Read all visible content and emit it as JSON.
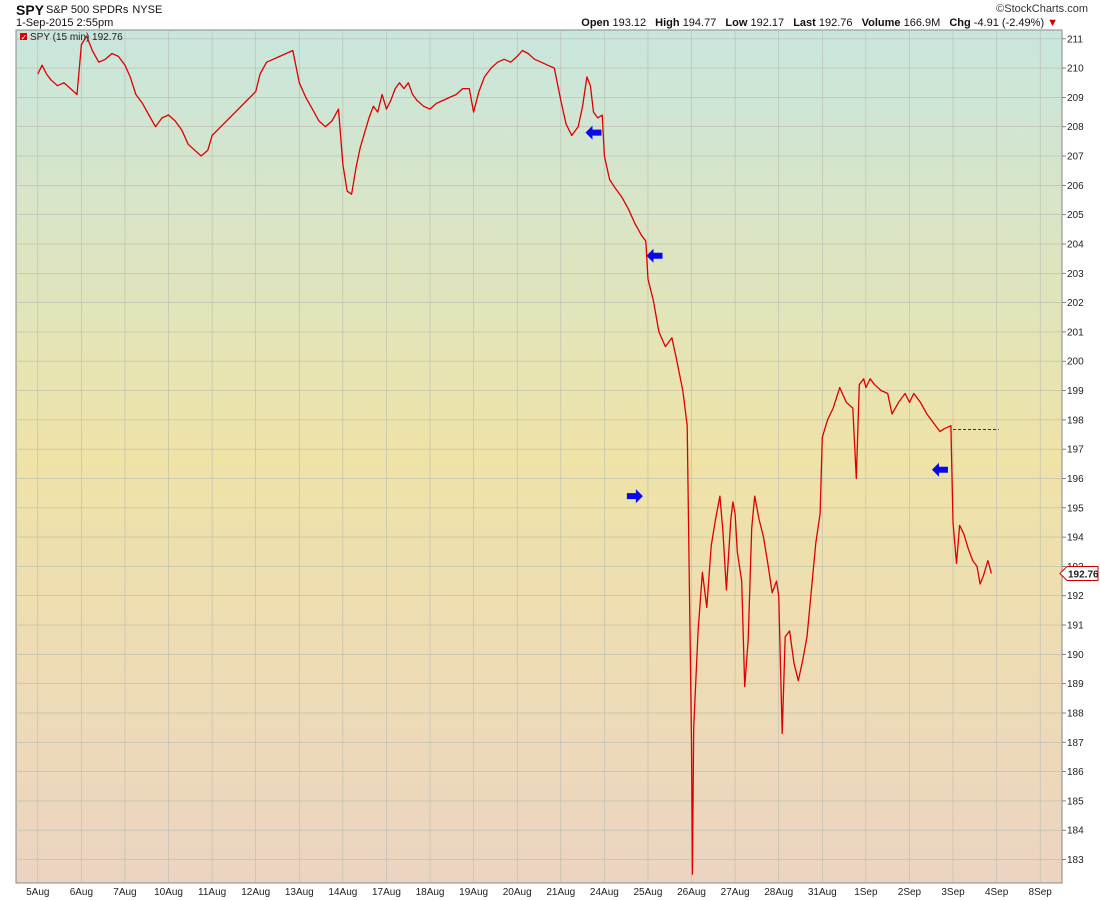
{
  "header": {
    "symbol": "SPY",
    "name": "S&P 500 SPDRs",
    "exchange": "NYSE",
    "datetime": "1-Sep-2015 2:55pm",
    "credit": "©StockCharts.com",
    "stats": {
      "open_label": "Open",
      "open": "193.12",
      "high_label": "High",
      "high": "194.77",
      "low_label": "Low",
      "low": "192.17",
      "last_label": "Last",
      "last": "192.76",
      "volume_label": "Volume",
      "volume": "166.9M",
      "chg_label": "Chg",
      "chg": "-4.91 (-2.49%)"
    }
  },
  "legend": {
    "text": "SPY (15 min) 192.76"
  },
  "price_tag": "192.76",
  "colors": {
    "line": "#dd0000",
    "arrow": "#0a0ae6",
    "grid": "#b9bcb0",
    "bg_top": "#c8e6de",
    "bg_mid": "#efe3a7",
    "bg_bottom": "#ecd4c2"
  },
  "chart_data": {
    "type": "line",
    "series": [
      {
        "name": "SPY (15 min)"
      }
    ],
    "x_ticks": [
      "5Aug",
      "6Aug",
      "7Aug",
      "10Aug",
      "11Aug",
      "12Aug",
      "13Aug",
      "14Aug",
      "17Aug",
      "18Aug",
      "19Aug",
      "20Aug",
      "21Aug",
      "24Aug",
      "25Aug",
      "26Aug",
      "27Aug",
      "28Aug",
      "31Aug",
      "1Sep",
      "2Sep",
      "3Sep",
      "4Sep",
      "8Sep"
    ],
    "y_ticks": [
      183,
      184,
      185,
      186,
      187,
      188,
      189,
      190,
      191,
      192,
      193,
      194,
      195,
      196,
      197,
      198,
      199,
      200,
      201,
      202,
      203,
      204,
      205,
      206,
      207,
      208,
      209,
      210,
      211
    ],
    "ylim": [
      182.2,
      211.3
    ],
    "grid": true,
    "points": [
      [
        4.0,
        209.8
      ],
      [
        4.1,
        210.1
      ],
      [
        4.2,
        209.8
      ],
      [
        4.3,
        209.6
      ],
      [
        4.45,
        209.4
      ],
      [
        4.6,
        209.5
      ],
      [
        4.75,
        209.3
      ],
      [
        4.9,
        209.1
      ],
      [
        5.0,
        210.8
      ],
      [
        5.12,
        211.1
      ],
      [
        5.25,
        210.6
      ],
      [
        5.4,
        210.2
      ],
      [
        5.55,
        210.3
      ],
      [
        5.7,
        210.5
      ],
      [
        5.85,
        210.4
      ],
      [
        6.0,
        210.1
      ],
      [
        6.12,
        209.7
      ],
      [
        6.25,
        209.1
      ],
      [
        6.4,
        208.8
      ],
      [
        6.55,
        208.4
      ],
      [
        6.7,
        208.0
      ],
      [
        6.85,
        208.3
      ],
      [
        7.0,
        208.4
      ],
      [
        7.15,
        208.2
      ],
      [
        7.3,
        207.9
      ],
      [
        7.45,
        207.4
      ],
      [
        7.6,
        207.2
      ],
      [
        7.75,
        207.0
      ],
      [
        7.9,
        207.2
      ],
      [
        8.0,
        207.7
      ],
      [
        9.0,
        209.2
      ],
      [
        9.1,
        209.8
      ],
      [
        9.25,
        210.2
      ],
      [
        9.4,
        210.3
      ],
      [
        9.55,
        210.4
      ],
      [
        9.7,
        210.5
      ],
      [
        9.85,
        210.6
      ],
      [
        10.0,
        209.5
      ],
      [
        10.15,
        209.0
      ],
      [
        10.3,
        208.6
      ],
      [
        10.45,
        208.2
      ],
      [
        10.6,
        208.0
      ],
      [
        10.75,
        208.2
      ],
      [
        10.9,
        208.6
      ],
      [
        11.0,
        206.7
      ],
      [
        11.1,
        205.8
      ],
      [
        11.2,
        205.7
      ],
      [
        11.3,
        206.6
      ],
      [
        11.4,
        207.3
      ],
      [
        11.5,
        207.8
      ],
      [
        11.6,
        208.3
      ],
      [
        11.7,
        208.7
      ],
      [
        11.8,
        208.5
      ],
      [
        11.9,
        209.1
      ],
      [
        12.0,
        208.6
      ],
      [
        12.1,
        208.9
      ],
      [
        12.2,
        209.3
      ],
      [
        12.3,
        209.5
      ],
      [
        12.4,
        209.3
      ],
      [
        12.5,
        209.5
      ],
      [
        12.6,
        209.1
      ],
      [
        12.7,
        208.9
      ],
      [
        12.85,
        208.7
      ],
      [
        13.0,
        208.6
      ],
      [
        13.15,
        208.8
      ],
      [
        13.3,
        208.9
      ],
      [
        13.45,
        209.0
      ],
      [
        13.6,
        209.1
      ],
      [
        13.75,
        209.3
      ],
      [
        13.9,
        209.3
      ],
      [
        14.0,
        208.5
      ],
      [
        14.12,
        209.2
      ],
      [
        14.25,
        209.7
      ],
      [
        14.4,
        210.0
      ],
      [
        14.55,
        210.2
      ],
      [
        14.7,
        210.3
      ],
      [
        14.85,
        210.2
      ],
      [
        15.0,
        210.4
      ],
      [
        15.12,
        210.6
      ],
      [
        15.25,
        210.5
      ],
      [
        15.4,
        210.3
      ],
      [
        15.55,
        210.2
      ],
      [
        15.7,
        210.1
      ],
      [
        15.85,
        210.0
      ],
      [
        16.0,
        208.9
      ],
      [
        16.12,
        208.1
      ],
      [
        16.25,
        207.7
      ],
      [
        16.4,
        208.0
      ],
      [
        16.5,
        208.7
      ],
      [
        16.6,
        209.7
      ],
      [
        16.68,
        209.4
      ],
      [
        16.75,
        208.5
      ],
      [
        16.85,
        208.3
      ],
      [
        16.95,
        208.4
      ],
      [
        17.0,
        207.0
      ],
      [
        17.12,
        206.2
      ],
      [
        17.25,
        205.9
      ],
      [
        17.4,
        205.6
      ],
      [
        17.55,
        205.2
      ],
      [
        17.7,
        204.7
      ],
      [
        17.85,
        204.3
      ],
      [
        17.95,
        204.1
      ],
      [
        18.0,
        202.8
      ],
      [
        18.12,
        202.1
      ],
      [
        18.25,
        201.0
      ],
      [
        18.4,
        200.5
      ],
      [
        18.55,
        200.8
      ],
      [
        18.65,
        200.1
      ],
      [
        18.8,
        199.0
      ],
      [
        18.9,
        197.8
      ],
      [
        19.0,
        187.0
      ],
      [
        19.02,
        182.5
      ],
      [
        19.05,
        187.5
      ],
      [
        19.15,
        190.8
      ],
      [
        19.25,
        192.8
      ],
      [
        19.35,
        191.6
      ],
      [
        19.45,
        193.7
      ],
      [
        19.55,
        194.6
      ],
      [
        19.65,
        195.4
      ],
      [
        19.72,
        194.2
      ],
      [
        19.8,
        192.2
      ],
      [
        19.9,
        194.6
      ],
      [
        19.95,
        195.2
      ],
      [
        20.0,
        194.8
      ],
      [
        20.05,
        193.5
      ],
      [
        20.15,
        192.5
      ],
      [
        20.22,
        188.9
      ],
      [
        20.3,
        190.5
      ],
      [
        20.38,
        194.3
      ],
      [
        20.45,
        195.4
      ],
      [
        20.55,
        194.6
      ],
      [
        20.65,
        194.0
      ],
      [
        20.75,
        193.1
      ],
      [
        20.85,
        192.1
      ],
      [
        20.95,
        192.5
      ],
      [
        21.0,
        192.0
      ],
      [
        21.08,
        187.3
      ],
      [
        21.15,
        190.6
      ],
      [
        21.25,
        190.8
      ],
      [
        21.35,
        189.7
      ],
      [
        21.45,
        189.1
      ],
      [
        21.55,
        189.8
      ],
      [
        21.65,
        190.6
      ],
      [
        21.75,
        192.2
      ],
      [
        21.85,
        193.8
      ],
      [
        21.95,
        194.8
      ],
      [
        22.0,
        197.4
      ],
      [
        22.12,
        198.0
      ],
      [
        22.25,
        198.4
      ],
      [
        22.4,
        199.1
      ],
      [
        22.55,
        198.6
      ],
      [
        22.7,
        198.4
      ],
      [
        22.78,
        196.0
      ],
      [
        22.85,
        199.2
      ],
      [
        22.95,
        199.4
      ],
      [
        23.0,
        199.1
      ],
      [
        23.1,
        199.4
      ],
      [
        23.2,
        199.2
      ],
      [
        23.35,
        199.0
      ],
      [
        23.5,
        198.9
      ],
      [
        23.6,
        198.2
      ],
      [
        23.75,
        198.6
      ],
      [
        23.9,
        198.9
      ],
      [
        24.0,
        198.6
      ],
      [
        24.1,
        198.9
      ],
      [
        24.25,
        198.6
      ],
      [
        24.4,
        198.2
      ],
      [
        24.55,
        197.9
      ],
      [
        24.7,
        197.6
      ],
      [
        24.8,
        197.7
      ],
      [
        24.95,
        197.8
      ],
      [
        25.0,
        194.5
      ],
      [
        25.08,
        193.1
      ],
      [
        25.15,
        194.4
      ],
      [
        25.25,
        194.1
      ],
      [
        25.35,
        193.6
      ],
      [
        25.45,
        193.2
      ],
      [
        25.55,
        193.0
      ],
      [
        25.62,
        192.4
      ],
      [
        25.7,
        192.7
      ],
      [
        25.8,
        193.2
      ],
      [
        25.88,
        192.76
      ]
    ],
    "prev_close": {
      "value": 197.67,
      "x_start": 25.0,
      "x_end": 26.05
    },
    "annotations": [
      {
        "type": "arrow-left",
        "x": 16.75,
        "y": 207.8
      },
      {
        "type": "arrow-left",
        "x": 18.15,
        "y": 203.6
      },
      {
        "type": "arrow-right",
        "x": 17.7,
        "y": 195.4
      },
      {
        "type": "arrow-left",
        "x": 24.7,
        "y": 196.3
      }
    ]
  }
}
